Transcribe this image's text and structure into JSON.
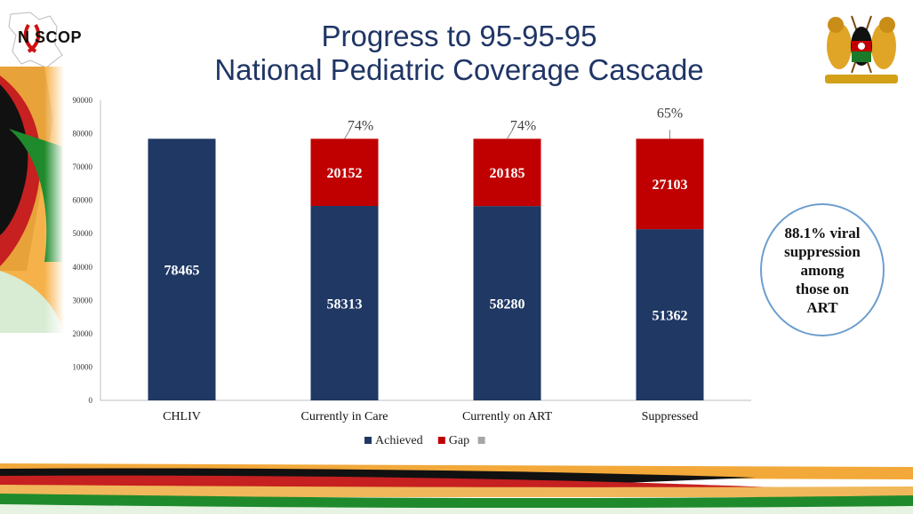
{
  "header": {
    "logo_text": "N SCOP",
    "title_line1": "Progress to 95-95-95",
    "title_line2": "National Pediatric Coverage Cascade"
  },
  "callout": {
    "text_line1": "88.1% viral",
    "text_line2": "suppression",
    "text_line3": "among",
    "text_line4": "those on",
    "text_line5": "ART"
  },
  "chart_data": {
    "type": "bar",
    "stacked": true,
    "title": "",
    "xlabel": "",
    "ylabel": "",
    "ylim": [
      0,
      90000
    ],
    "yticks": [
      0,
      10000,
      20000,
      30000,
      40000,
      50000,
      60000,
      70000,
      80000,
      90000
    ],
    "ytick_labels": [
      "0",
      "10000",
      "20000",
      "30000",
      "40000",
      "50000",
      "60000",
      "70000",
      "80000",
      "90000"
    ],
    "categories": [
      "CHLIV",
      "Currently in Care",
      "Currently on ART",
      "Suppressed"
    ],
    "series": [
      {
        "name": "Achieved",
        "color": "#1f3864",
        "values": [
          78465,
          58313,
          58280,
          51362
        ],
        "labels": [
          "78465",
          "58313",
          "58280",
          "51362"
        ]
      },
      {
        "name": "Gap",
        "color": "#c00000",
        "values": [
          0,
          20152,
          20185,
          27103
        ],
        "labels": [
          "",
          "20152",
          "20185",
          "27103"
        ]
      }
    ],
    "annotations": [
      "",
      "74%",
      "74%",
      "65%"
    ],
    "legend": {
      "position": "bottom",
      "entries": [
        "Achieved",
        "Gap",
        ""
      ],
      "third_color": "#a6a6a6"
    },
    "grid": false
  }
}
